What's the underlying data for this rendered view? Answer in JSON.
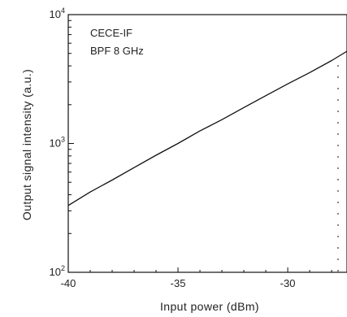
{
  "chart_data": {
    "type": "line",
    "xlabel": "Input power (dBm)",
    "ylabel": "Output signal intensity (a.u.)",
    "xlim": [
      -40,
      -27.3
    ],
    "ylim": [
      100,
      10000
    ],
    "yscale": "log",
    "x_ticks": [
      -40,
      -35,
      -30
    ],
    "x_tick_labels": [
      "-40",
      "-35",
      "-30"
    ],
    "y_ticks": [
      100,
      1000,
      10000
    ],
    "y_tick_labels": [
      {
        "base": "10",
        "exp": "2"
      },
      {
        "base": "10",
        "exp": "3"
      },
      {
        "base": "10",
        "exp": "4"
      }
    ],
    "annotations": [
      "CECE-IF",
      "BPF 8 GHz"
    ],
    "series": [
      {
        "color": "#111111",
        "x": [
          -40,
          -39,
          -38,
          -37,
          -36,
          -35,
          -34,
          -33,
          -32,
          -31,
          -30,
          -29,
          -28,
          -27.3
        ],
        "y": [
          330,
          420,
          520,
          650,
          810,
          1000,
          1250,
          1530,
          1900,
          2350,
          2900,
          3550,
          4400,
          5200
        ]
      }
    ],
    "grid": false
  }
}
